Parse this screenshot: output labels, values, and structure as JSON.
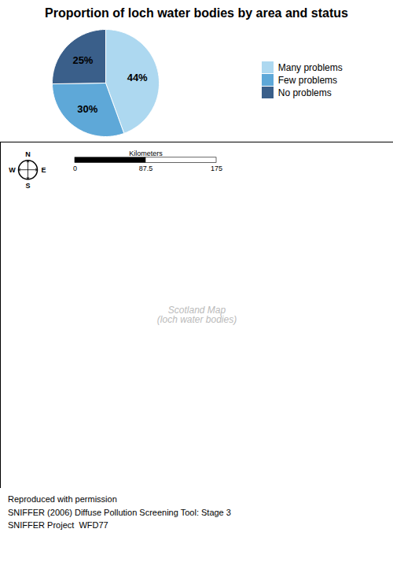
{
  "chart_data": {
    "type": "pie",
    "title": "Proportion of loch water bodies by area and status",
    "categories": [
      "Many problems",
      "Few problems",
      "No problems"
    ],
    "values": [
      44,
      30,
      25
    ],
    "value_labels": [
      "44%",
      "30%",
      "25%"
    ],
    "colors": [
      "#add8f0",
      "#5ea8d8",
      "#3a5f8a"
    ],
    "legend": "right",
    "annotations": [
      "Scotland Map\n(loch water bodies)"
    ],
    "scale_bar": {
      "label": "Kilometers",
      "ticks": [
        0,
        87.5,
        175
      ]
    },
    "compass": [
      "N",
      "E",
      "S",
      "W"
    ],
    "caption": [
      "Reproduced with permission",
      "SNIFFER (2006) Diffuse Pollution Screening Tool: Stage 3",
      "SNIFFER Project  WFD77"
    ]
  }
}
